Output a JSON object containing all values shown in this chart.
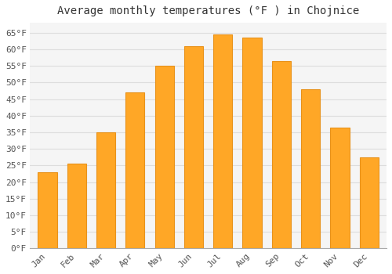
{
  "title": "Average monthly temperatures (°F ) in Chojnice",
  "months": [
    "Jan",
    "Feb",
    "Mar",
    "Apr",
    "May",
    "Jun",
    "Jul",
    "Aug",
    "Sep",
    "Oct",
    "Nov",
    "Dec"
  ],
  "values": [
    23.0,
    25.5,
    35.0,
    47.0,
    55.0,
    61.0,
    64.5,
    63.5,
    56.5,
    48.0,
    36.5,
    27.5
  ],
  "bar_color": "#FFA726",
  "bar_edge_color": "#E8921A",
  "background_color": "#FFFFFF",
  "plot_bg_color": "#F5F5F5",
  "grid_color": "#DDDDDD",
  "ylim": [
    0,
    68
  ],
  "yticks": [
    0,
    5,
    10,
    15,
    20,
    25,
    30,
    35,
    40,
    45,
    50,
    55,
    60,
    65
  ],
  "ytick_labels": [
    "0°F",
    "5°F",
    "10°F",
    "15°F",
    "20°F",
    "25°F",
    "30°F",
    "35°F",
    "40°F",
    "45°F",
    "50°F",
    "55°F",
    "60°F",
    "65°F"
  ],
  "title_fontsize": 10,
  "tick_fontsize": 8,
  "font_family": "monospace",
  "bar_width": 0.65
}
